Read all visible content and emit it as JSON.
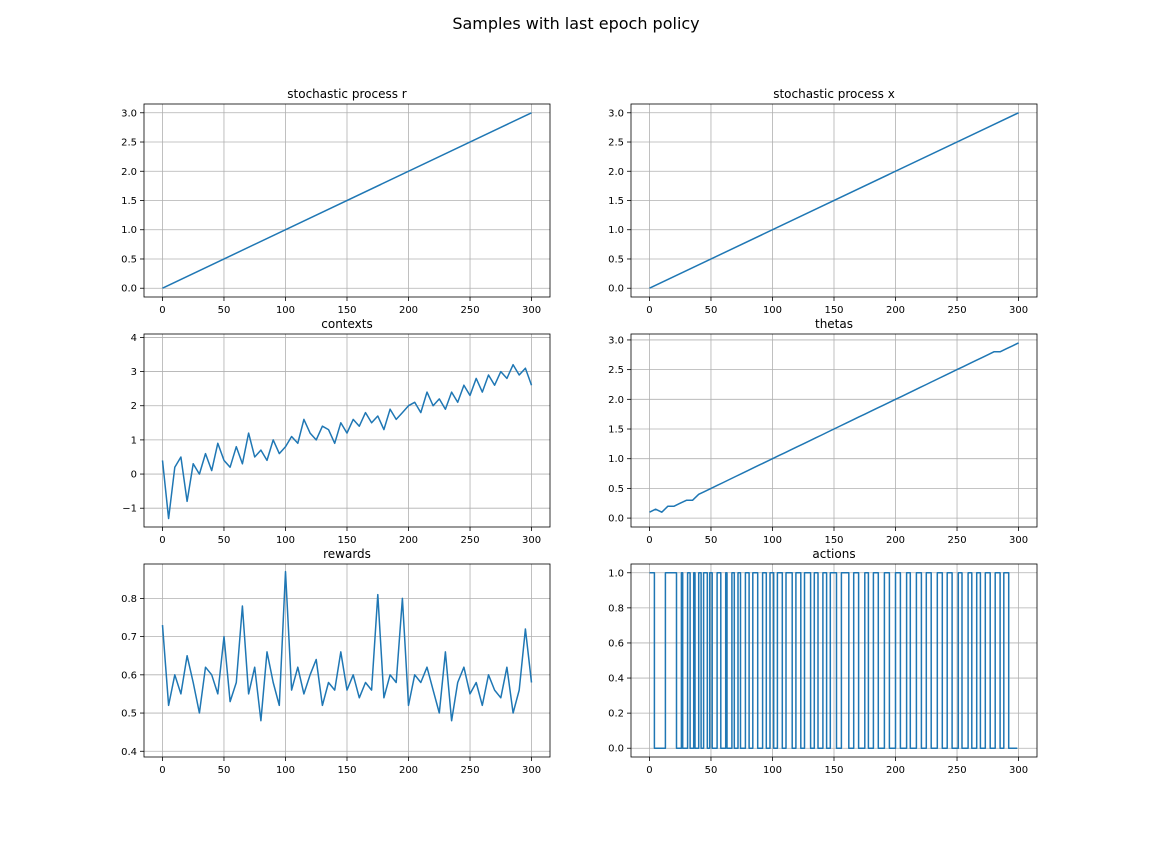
{
  "figure": {
    "suptitle": "Samples with last epoch policy"
  },
  "colors": {
    "series": "#1f77b4",
    "grid": "#b0b0b0",
    "axes": "#000000",
    "background": "#ffffff"
  },
  "chart_data": [
    {
      "type": "line",
      "title": "stochastic process r",
      "xlim": [
        -15,
        315
      ],
      "ylim": [
        -0.15,
        3.15
      ],
      "grid": true,
      "xticks": [
        0,
        50,
        100,
        150,
        200,
        250,
        300
      ],
      "yticks": [
        0.0,
        0.5,
        1.0,
        1.5,
        2.0,
        2.5,
        3.0
      ],
      "yticklabels": [
        "0.0",
        "0.5",
        "1.0",
        "1.5",
        "2.0",
        "2.5",
        "3.0"
      ],
      "series": [
        {
          "x": [
            0,
            300
          ],
          "y": [
            0.0,
            3.0
          ]
        }
      ]
    },
    {
      "type": "line",
      "title": "stochastic process x",
      "xlim": [
        -15,
        315
      ],
      "ylim": [
        -0.15,
        3.15
      ],
      "grid": true,
      "xticks": [
        0,
        50,
        100,
        150,
        200,
        250,
        300
      ],
      "yticks": [
        0.0,
        0.5,
        1.0,
        1.5,
        2.0,
        2.5,
        3.0
      ],
      "yticklabels": [
        "0.0",
        "0.5",
        "1.0",
        "1.5",
        "2.0",
        "2.5",
        "3.0"
      ],
      "series": [
        {
          "x": [
            0,
            300
          ],
          "y": [
            0.0,
            3.0
          ]
        }
      ]
    },
    {
      "type": "line",
      "title": "contexts",
      "xlim": [
        -15,
        315
      ],
      "ylim": [
        -1.55,
        4.1
      ],
      "grid": true,
      "xticks": [
        0,
        50,
        100,
        150,
        200,
        250,
        300
      ],
      "yticks": [
        -1,
        0,
        1,
        2,
        3,
        4
      ],
      "yticklabels": [
        "−1",
        "0",
        "1",
        "2",
        "3",
        "4"
      ],
      "series": [
        {
          "x0": 0,
          "dx": 5,
          "y": [
            0.4,
            -1.3,
            0.2,
            0.5,
            -0.8,
            0.3,
            0.0,
            0.6,
            0.1,
            0.9,
            0.4,
            0.2,
            0.8,
            0.3,
            1.2,
            0.5,
            0.7,
            0.4,
            1.0,
            0.6,
            0.8,
            1.1,
            0.9,
            1.6,
            1.2,
            1.0,
            1.4,
            1.3,
            0.9,
            1.5,
            1.2,
            1.6,
            1.4,
            1.8,
            1.5,
            1.7,
            1.3,
            1.9,
            1.6,
            1.8,
            2.0,
            2.1,
            1.8,
            2.4,
            2.0,
            2.2,
            1.9,
            2.4,
            2.1,
            2.6,
            2.3,
            2.8,
            2.4,
            2.9,
            2.6,
            3.0,
            2.8,
            3.2,
            2.9,
            3.1,
            2.6
          ]
        }
      ]
    },
    {
      "type": "line",
      "title": "thetas",
      "xlim": [
        -15,
        315
      ],
      "ylim": [
        -0.15,
        3.1
      ],
      "grid": true,
      "xticks": [
        0,
        50,
        100,
        150,
        200,
        250,
        300
      ],
      "yticks": [
        0.0,
        0.5,
        1.0,
        1.5,
        2.0,
        2.5,
        3.0
      ],
      "yticklabels": [
        "0.0",
        "0.5",
        "1.0",
        "1.5",
        "2.0",
        "2.5",
        "3.0"
      ],
      "series": [
        {
          "x0": 0,
          "dx": 5,
          "y": [
            0.1,
            0.15,
            0.1,
            0.2,
            0.2,
            0.25,
            0.3,
            0.3,
            0.4,
            0.45,
            0.5,
            0.55,
            0.6,
            0.65,
            0.7,
            0.75,
            0.8,
            0.85,
            0.9,
            0.95,
            1.0,
            1.05,
            1.1,
            1.15,
            1.2,
            1.25,
            1.3,
            1.35,
            1.4,
            1.45,
            1.5,
            1.55,
            1.6,
            1.65,
            1.7,
            1.75,
            1.8,
            1.85,
            1.9,
            1.95,
            2.0,
            2.05,
            2.1,
            2.15,
            2.2,
            2.25,
            2.3,
            2.35,
            2.4,
            2.45,
            2.5,
            2.55,
            2.6,
            2.65,
            2.7,
            2.75,
            2.8,
            2.8,
            2.85,
            2.9,
            2.95
          ]
        }
      ]
    },
    {
      "type": "line",
      "title": "rewards",
      "xlim": [
        -15,
        315
      ],
      "ylim": [
        0.385,
        0.89
      ],
      "grid": true,
      "xticks": [
        0,
        50,
        100,
        150,
        200,
        250,
        300
      ],
      "yticks": [
        0.4,
        0.5,
        0.6,
        0.7,
        0.8
      ],
      "yticklabels": [
        "0.4",
        "0.5",
        "0.6",
        "0.7",
        "0.8"
      ],
      "series": [
        {
          "x0": 0,
          "dx": 5,
          "y": [
            0.73,
            0.52,
            0.6,
            0.55,
            0.65,
            0.58,
            0.5,
            0.62,
            0.6,
            0.55,
            0.7,
            0.53,
            0.58,
            0.78,
            0.55,
            0.62,
            0.48,
            0.66,
            0.58,
            0.52,
            0.87,
            0.56,
            0.62,
            0.55,
            0.6,
            0.64,
            0.52,
            0.58,
            0.56,
            0.66,
            0.56,
            0.6,
            0.54,
            0.58,
            0.56,
            0.81,
            0.54,
            0.6,
            0.58,
            0.8,
            0.52,
            0.6,
            0.58,
            0.62,
            0.56,
            0.5,
            0.66,
            0.48,
            0.58,
            0.62,
            0.55,
            0.58,
            0.52,
            0.6,
            0.56,
            0.54,
            0.62,
            0.5,
            0.56,
            0.72,
            0.58
          ]
        }
      ]
    },
    {
      "type": "line",
      "title": "actions",
      "xlim": [
        -15,
        315
      ],
      "ylim": [
        -0.05,
        1.05
      ],
      "grid": true,
      "xticks": [
        0,
        50,
        100,
        150,
        200,
        250,
        300
      ],
      "yticks": [
        0.0,
        0.2,
        0.4,
        0.6,
        0.8,
        1.0
      ],
      "yticklabels": [
        "0.0",
        "0.2",
        "0.4",
        "0.6",
        "0.8",
        "1.0"
      ],
      "series": [
        {
          "step": true,
          "x": [
            0,
            3,
            4,
            11,
            13,
            20,
            22,
            26,
            27,
            31,
            33,
            36,
            37,
            40,
            42,
            44,
            47,
            49,
            51,
            55,
            58,
            62,
            63,
            67,
            69,
            72,
            74,
            78,
            81,
            84,
            88,
            92,
            95,
            98,
            101,
            104,
            108,
            111,
            116,
            119,
            123,
            126,
            131,
            134,
            137,
            141,
            144,
            147,
            152,
            156,
            162,
            166,
            170,
            175,
            178,
            182,
            186,
            191,
            195,
            200,
            204,
            209,
            212,
            217,
            221,
            225,
            229,
            234,
            238,
            242,
            246,
            251,
            254,
            259,
            262,
            266,
            269,
            273,
            277,
            281,
            285,
            288,
            292,
            299
          ],
          "y": [
            1,
            1,
            0,
            0,
            1,
            1,
            0,
            1,
            0,
            1,
            0,
            1,
            0,
            1,
            0,
            1,
            0,
            1,
            0,
            1,
            0,
            1,
            0,
            1,
            0,
            1,
            0,
            1,
            0,
            1,
            0,
            1,
            0,
            1,
            0,
            1,
            0,
            1,
            0,
            1,
            0,
            1,
            0,
            1,
            0,
            1,
            0,
            1,
            0,
            1,
            0,
            1,
            0,
            1,
            0,
            1,
            0,
            1,
            0,
            1,
            0,
            1,
            0,
            1,
            0,
            1,
            0,
            1,
            0,
            1,
            0,
            1,
            0,
            1,
            0,
            1,
            0,
            1,
            0,
            1,
            0,
            1,
            0,
            0
          ]
        }
      ]
    }
  ]
}
